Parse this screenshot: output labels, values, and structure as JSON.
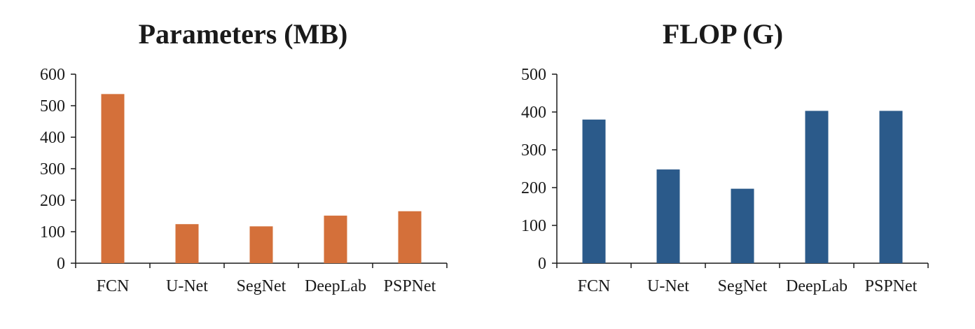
{
  "chart_data": [
    {
      "type": "bar",
      "title": "Parameters (MB)",
      "xlabel": "",
      "ylabel": "",
      "categories": [
        "FCN",
        "U-Net",
        "SegNet",
        "DeepLab",
        "PSPNet"
      ],
      "values": [
        537,
        124,
        117,
        151,
        165
      ],
      "ylim": [
        0,
        600
      ],
      "yticks": [
        0,
        100,
        200,
        300,
        400,
        500,
        600
      ],
      "color": "#D4703A",
      "grid": false
    },
    {
      "type": "bar",
      "title": "FLOP (G)",
      "xlabel": "",
      "ylabel": "",
      "categories": [
        "FCN",
        "U-Net",
        "SegNet",
        "DeepLab",
        "PSPNet"
      ],
      "values": [
        380,
        248,
        197,
        403,
        403
      ],
      "ylim": [
        0,
        500
      ],
      "yticks": [
        0,
        100,
        200,
        300,
        400,
        500
      ],
      "color": "#2B5A8A",
      "grid": false
    }
  ]
}
